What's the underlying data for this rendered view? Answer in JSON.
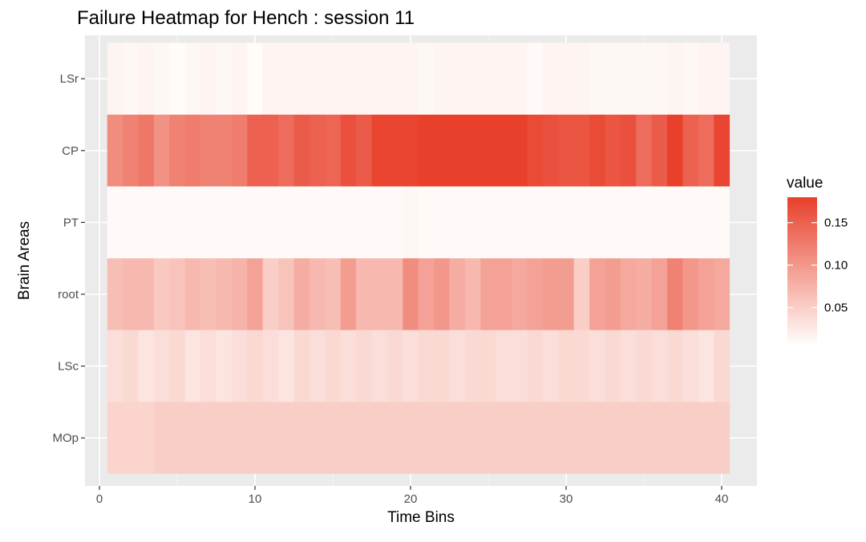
{
  "chart_data": {
    "type": "heatmap",
    "title": "Failure Heatmap for Hench : session 11",
    "xlabel": "Time Bins",
    "ylabel": "Brain Areas",
    "x_ticks": [
      0,
      10,
      20,
      30,
      40
    ],
    "xlim": [
      0,
      40.5
    ],
    "rows": [
      "LSr",
      "CP",
      "PT",
      "root",
      "LSc",
      "MOp"
    ],
    "columns": [
      1,
      2,
      3,
      4,
      5,
      6,
      7,
      8,
      9,
      10,
      11,
      12,
      13,
      14,
      15,
      16,
      17,
      18,
      19,
      20,
      21,
      22,
      23,
      24,
      25,
      26,
      27,
      28,
      29,
      30,
      31,
      32,
      33,
      34,
      35,
      36,
      37,
      38,
      39,
      40
    ],
    "values": {
      "LSr": [
        0.015,
        0.012,
        0.015,
        0.012,
        0.008,
        0.012,
        0.015,
        0.012,
        0.015,
        0.008,
        0.015,
        0.015,
        0.015,
        0.015,
        0.015,
        0.015,
        0.015,
        0.015,
        0.015,
        0.015,
        0.012,
        0.015,
        0.015,
        0.015,
        0.015,
        0.015,
        0.015,
        0.01,
        0.015,
        0.015,
        0.015,
        0.012,
        0.012,
        0.012,
        0.012,
        0.012,
        0.015,
        0.012,
        0.015,
        0.015
      ],
      "CP": [
        0.11,
        0.12,
        0.13,
        0.105,
        0.12,
        0.125,
        0.12,
        0.12,
        0.125,
        0.15,
        0.15,
        0.14,
        0.155,
        0.15,
        0.145,
        0.165,
        0.155,
        0.175,
        0.175,
        0.175,
        0.18,
        0.18,
        0.18,
        0.18,
        0.18,
        0.18,
        0.18,
        0.17,
        0.165,
        0.16,
        0.16,
        0.17,
        0.16,
        0.165,
        0.14,
        0.155,
        0.18,
        0.15,
        0.14,
        0.175
      ],
      "PT": [
        0.01,
        0.01,
        0.01,
        0.01,
        0.01,
        0.01,
        0.01,
        0.01,
        0.01,
        0.01,
        0.01,
        0.01,
        0.01,
        0.01,
        0.01,
        0.01,
        0.01,
        0.01,
        0.01,
        0.012,
        0.01,
        0.01,
        0.01,
        0.01,
        0.01,
        0.01,
        0.01,
        0.01,
        0.01,
        0.01,
        0.01,
        0.01,
        0.01,
        0.01,
        0.01,
        0.01,
        0.01,
        0.01,
        0.01,
        0.01
      ],
      "root": [
        0.065,
        0.07,
        0.07,
        0.055,
        0.06,
        0.07,
        0.065,
        0.07,
        0.075,
        0.09,
        0.05,
        0.06,
        0.08,
        0.07,
        0.065,
        0.095,
        0.07,
        0.07,
        0.07,
        0.11,
        0.09,
        0.1,
        0.08,
        0.07,
        0.09,
        0.09,
        0.085,
        0.09,
        0.095,
        0.095,
        0.05,
        0.09,
        0.095,
        0.085,
        0.08,
        0.09,
        0.12,
        0.1,
        0.09,
        0.085
      ],
      "LSc": [
        0.035,
        0.04,
        0.03,
        0.035,
        0.04,
        0.03,
        0.035,
        0.03,
        0.035,
        0.04,
        0.035,
        0.03,
        0.04,
        0.035,
        0.04,
        0.035,
        0.04,
        0.035,
        0.04,
        0.035,
        0.04,
        0.04,
        0.035,
        0.04,
        0.04,
        0.035,
        0.035,
        0.04,
        0.035,
        0.04,
        0.04,
        0.035,
        0.04,
        0.035,
        0.04,
        0.035,
        0.04,
        0.035,
        0.03,
        0.04
      ],
      "MOp": [
        0.045,
        0.045,
        0.045,
        0.05,
        0.05,
        0.05,
        0.05,
        0.05,
        0.05,
        0.05,
        0.05,
        0.05,
        0.05,
        0.05,
        0.05,
        0.05,
        0.05,
        0.05,
        0.05,
        0.05,
        0.05,
        0.05,
        0.05,
        0.05,
        0.05,
        0.05,
        0.05,
        0.05,
        0.05,
        0.05,
        0.05,
        0.05,
        0.05,
        0.05,
        0.05,
        0.05,
        0.05,
        0.05,
        0.05,
        0.05
      ]
    },
    "color_scale": {
      "title": "value",
      "low_color": "#fffcfa",
      "high_color": "#e8402b",
      "min": 0.008,
      "max": 0.18,
      "ticks": [
        0.05,
        0.1,
        0.15
      ],
      "tick_labels": [
        "0.05",
        "0.10",
        "0.15"
      ]
    },
    "panel_background": "#ebebeb",
    "grid": true,
    "legend_position": "right"
  }
}
